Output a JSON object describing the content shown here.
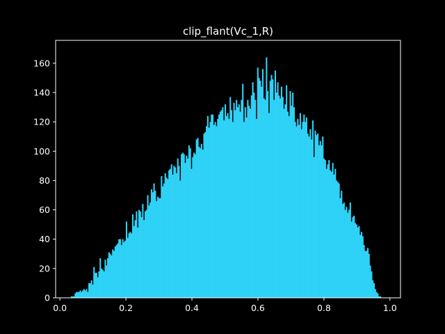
{
  "chart_data": {
    "type": "bar",
    "title": "clip_flant(Vc_1,R)",
    "xlabel": "",
    "ylabel": "",
    "xlim": [
      -0.013,
      1.032
    ],
    "ylim": [
      0,
      175.6
    ],
    "xticks": [
      0.0,
      0.2,
      0.4,
      0.6,
      0.8,
      1.0
    ],
    "xtick_labels": [
      "0.0",
      "0.2",
      "0.4",
      "0.6",
      "0.8",
      "1.0"
    ],
    "yticks": [
      0,
      20,
      40,
      60,
      80,
      100,
      120,
      140,
      160
    ],
    "ytick_labels": [
      "0",
      "20",
      "40",
      "60",
      "80",
      "100",
      "120",
      "140",
      "160"
    ],
    "bar_color": "#2fd2f7",
    "background": "#000000",
    "foreground": "#ffffff",
    "grid": false,
    "bins": {
      "start": 0.033,
      "width": 0.003788,
      "counts": [
        1,
        1,
        1,
        3,
        4,
        4,
        4,
        5,
        4,
        5,
        6,
        5,
        6,
        4,
        10,
        10,
        12,
        9,
        21,
        17,
        17,
        14,
        18,
        27,
        20,
        19,
        18,
        26,
        22,
        27,
        31,
        30,
        29,
        33,
        32,
        35,
        36,
        37,
        40,
        40,
        36,
        40,
        38,
        39,
        52,
        41,
        44,
        45,
        44,
        57,
        49,
        53,
        59,
        48,
        60,
        59,
        55,
        64,
        53,
        59,
        60,
        70,
        63,
        65,
        74,
        72,
        78,
        73,
        66,
        69,
        68,
        68,
        83,
        76,
        78,
        85,
        82,
        81,
        87,
        88,
        91,
        84,
        90,
        89,
        85,
        95,
        90,
        80,
        98,
        99,
        98,
        92,
        97,
        95,
        104,
        102,
        88,
        96,
        99,
        98,
        108,
        109,
        103,
        102,
        105,
        101,
        112,
        113,
        117,
        124,
        116,
        120,
        125,
        125,
        118,
        120,
        117,
        122,
        125,
        127,
        128,
        130,
        121,
        132,
        124,
        126,
        122,
        137,
        128,
        120,
        133,
        128,
        135,
        130,
        132,
        127,
        135,
        146,
        120,
        130,
        123,
        135,
        131,
        129,
        138,
        147,
        140,
        135,
        122,
        157,
        150,
        148,
        144,
        156,
        136,
        135,
        164,
        141,
        126,
        148,
        152,
        149,
        135,
        155,
        140,
        147,
        138,
        136,
        144,
        137,
        129,
        132,
        145,
        127,
        124,
        141,
        131,
        140,
        130,
        120,
        117,
        122,
        118,
        126,
        115,
        120,
        125,
        120,
        123,
        112,
        110,
        115,
        108,
        121,
        96,
        114,
        111,
        112,
        104,
        107,
        104,
        110,
        95,
        94,
        88,
        91,
        94,
        87,
        86,
        92,
        84,
        88,
        80,
        79,
        78,
        68,
        73,
        64,
        65,
        60,
        62,
        58,
        60,
        65,
        52,
        55,
        56,
        51,
        50,
        48,
        49,
        43,
        45,
        42,
        36,
        32,
        32,
        34,
        30,
        22,
        18,
        12,
        10,
        6,
        4,
        3,
        1,
        1
      ]
    }
  }
}
